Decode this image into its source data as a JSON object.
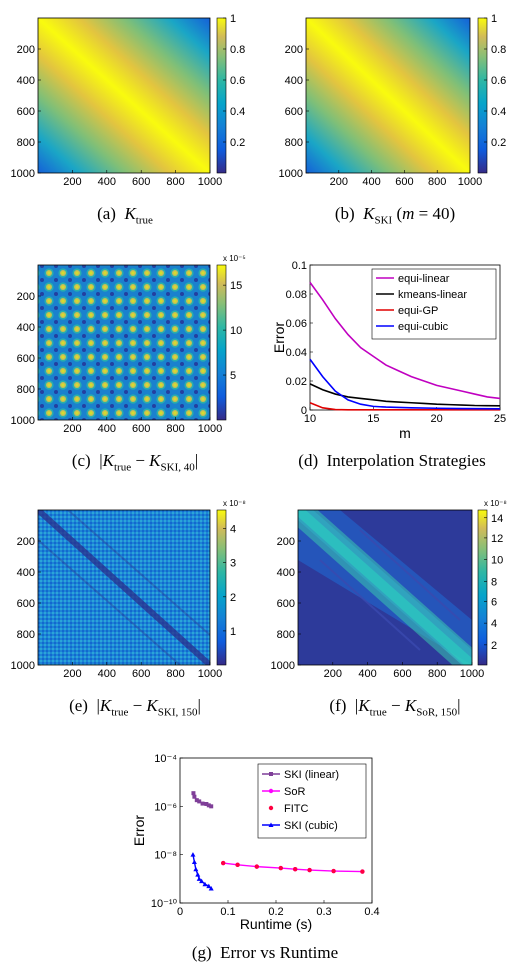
{
  "figure": {
    "panels": [
      {
        "id": "a",
        "caption": "(a) K_true",
        "cbar_ticks": [
          "1",
          "0.8",
          "0.6",
          "0.4",
          "0.2"
        ],
        "cbar_exponent": ""
      },
      {
        "id": "b",
        "caption": "(b) K_SKI (m = 40)",
        "cbar_ticks": [
          "1",
          "0.8",
          "0.6",
          "0.4",
          "0.2"
        ],
        "cbar_exponent": ""
      },
      {
        "id": "c",
        "caption": "(c) |K_true − K_SKI, 40|",
        "cbar_ticks": [
          "15",
          "10",
          "5"
        ],
        "cbar_exponent": "x 10⁻⁵"
      },
      {
        "id": "e",
        "caption": "(e) |K_true − K_SKI, 150|",
        "cbar_ticks": [
          "4",
          "3",
          "2",
          "1"
        ],
        "cbar_exponent": "x 10⁻⁸"
      },
      {
        "id": "f",
        "caption": "(f) |K_true − K_SoR, 150|",
        "cbar_ticks": [
          "14",
          "12",
          "10",
          "8",
          "6",
          "4",
          "2"
        ],
        "cbar_exponent": "x 10⁻⁸"
      }
    ],
    "matrix_axis_ticks": [
      "200",
      "400",
      "600",
      "800",
      "1000"
    ],
    "matrix_xaxis_ticks": [
      "200",
      "400",
      "600",
      "800",
      "1000"
    ]
  },
  "chart_data": [
    {
      "type": "line",
      "id": "d",
      "caption": "(d) Interpolation Strategies",
      "xlabel": "m",
      "ylabel": "Error",
      "xlim": [
        10,
        25
      ],
      "ylim": [
        0,
        0.1
      ],
      "xticks": [
        "10",
        "15",
        "20",
        "25"
      ],
      "yticks": [
        "0",
        "0.02",
        "0.04",
        "0.06",
        "0.08",
        "0.1"
      ],
      "legend_position": "top-right",
      "series": [
        {
          "name": "equi-linear",
          "color": "#c000c0",
          "x": [
            10,
            11,
            12,
            13,
            14,
            15,
            16,
            17,
            18,
            19,
            20,
            21,
            22,
            23,
            24,
            25
          ],
          "y": [
            0.088,
            0.076,
            0.063,
            0.052,
            0.043,
            0.037,
            0.031,
            0.027,
            0.023,
            0.02,
            0.017,
            0.015,
            0.013,
            0.011,
            0.009,
            0.008
          ]
        },
        {
          "name": "kmeans-linear",
          "color": "#000000",
          "x": [
            10,
            11,
            12,
            13,
            14,
            15,
            16,
            17,
            18,
            19,
            20,
            21,
            22,
            23,
            24,
            25
          ],
          "y": [
            0.018,
            0.014,
            0.011,
            0.009,
            0.008,
            0.007,
            0.006,
            0.0055,
            0.005,
            0.0045,
            0.004,
            0.0037,
            0.0034,
            0.0031,
            0.003,
            0.0029
          ]
        },
        {
          "name": "equi-GP",
          "color": "#e00000",
          "x": [
            10,
            11,
            12,
            13,
            15,
            20,
            25
          ],
          "y": [
            0.005,
            0.0015,
            0.0003,
            0.0001,
            0.0001,
            0.0001,
            0.0001
          ]
        },
        {
          "name": "equi-cubic",
          "color": "#0000ff",
          "x": [
            10,
            11,
            12,
            13,
            14,
            15,
            16,
            18,
            20,
            22,
            25
          ],
          "y": [
            0.035,
            0.023,
            0.013,
            0.007,
            0.004,
            0.0025,
            0.002,
            0.0015,
            0.0012,
            0.001,
            0.0008
          ]
        }
      ]
    },
    {
      "type": "line",
      "id": "g",
      "caption": "(g) Error vs Runtime",
      "xlabel": "Runtime (s)",
      "ylabel": "Error",
      "xscale": "linear",
      "yscale": "log",
      "xlim": [
        0,
        0.4
      ],
      "ylim": [
        1e-10,
        0.0001
      ],
      "xticks": [
        "0",
        "0.1",
        "0.2",
        "0.3",
        "0.4"
      ],
      "yticks": [
        "10⁻¹⁰",
        "10⁻⁸",
        "10⁻⁶",
        "10⁻⁴"
      ],
      "legend_position": "top-right",
      "series": [
        {
          "name": "SKI (linear)",
          "color": "#7f3f98",
          "marker": "square",
          "x": [
            0.028,
            0.03,
            0.035,
            0.04,
            0.047,
            0.055,
            0.06,
            0.065
          ],
          "y": [
            3.5e-06,
            2.5e-06,
            1.8e-06,
            1.6e-06,
            1.3e-06,
            1.25e-06,
            1.1e-06,
            1e-06
          ]
        },
        {
          "name": "SoR",
          "color": "#ff00ff",
          "marker": "circle",
          "x": [
            0.09,
            0.12,
            0.16,
            0.21,
            0.24,
            0.27,
            0.32,
            0.38
          ],
          "y": [
            4.5e-09,
            3.8e-09,
            3.2e-09,
            2.8e-09,
            2.5e-09,
            2.3e-09,
            2.1e-09,
            2e-09
          ]
        },
        {
          "name": "FITC",
          "color": "#ff0040",
          "marker": "dot",
          "x": [
            0.09,
            0.12,
            0.16,
            0.21,
            0.24,
            0.27,
            0.32,
            0.38
          ],
          "y": [
            4.5e-09,
            3.8e-09,
            3.2e-09,
            2.8e-09,
            2.5e-09,
            2.3e-09,
            2.1e-09,
            2e-09
          ]
        },
        {
          "name": "SKI (cubic)",
          "color": "#0000ff",
          "marker": "triangle",
          "x": [
            0.027,
            0.03,
            0.033,
            0.037,
            0.04,
            0.045,
            0.052,
            0.06,
            0.065
          ],
          "y": [
            1e-08,
            5e-09,
            2.5e-09,
            1.5e-09,
            1e-09,
            8e-10,
            6e-10,
            5e-10,
            4e-10
          ]
        }
      ]
    }
  ]
}
